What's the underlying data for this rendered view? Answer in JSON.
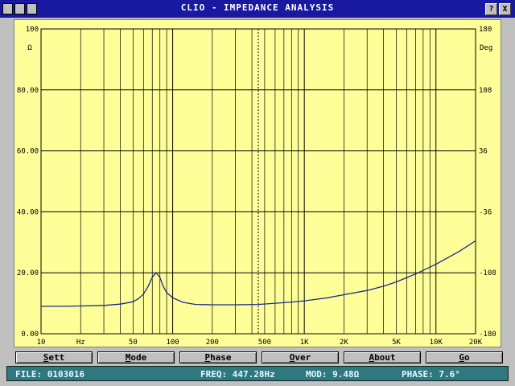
{
  "window": {
    "title": "CLIO - IMPEDANCE ANALYSIS",
    "help_label": "?",
    "close_label": "X"
  },
  "graph": {
    "left_unit": "Ω",
    "right_unit": "Deg",
    "left_ticks": [
      "100",
      "80.00",
      "60.00",
      "40.00",
      "20.00",
      "0.00"
    ],
    "right_ticks": [
      "180",
      "108",
      "36",
      "-36",
      "-108",
      "-180"
    ],
    "x_ticks": [
      "10",
      "Hz",
      "50",
      "100",
      "200",
      "500",
      "1K",
      "2K",
      "5K",
      "10K",
      "20K"
    ],
    "background_color": "#ffff99",
    "trace_color": "#1a2a8a"
  },
  "chart_data": {
    "type": "line",
    "title": "CLIO - IMPEDANCE ANALYSIS",
    "xscale": "log",
    "xlim": [
      10,
      20000
    ],
    "ylim": [
      0,
      100
    ],
    "y2lim": [
      -180,
      180
    ],
    "ylabel": "Ω",
    "y2label": "Deg",
    "xlabel": "Hz",
    "grid": true,
    "cursor_hz": 447.28,
    "series": [
      {
        "x": [
          10,
          15,
          20,
          30,
          40,
          50,
          55,
          60,
          65,
          70,
          75,
          80,
          85,
          90,
          100,
          120,
          150,
          200,
          300,
          447,
          600,
          800,
          1000,
          1500,
          2000,
          3000,
          4000,
          5000,
          7000,
          10000,
          15000,
          20000
        ],
        "y": [
          9.0,
          9.0,
          9.1,
          9.3,
          9.7,
          10.5,
          11.5,
          13.0,
          15.5,
          18.5,
          20.0,
          18.5,
          15.5,
          13.5,
          11.8,
          10.3,
          9.6,
          9.5,
          9.5,
          9.6,
          10.0,
          10.4,
          10.8,
          11.8,
          12.8,
          14.2,
          15.6,
          17.0,
          19.6,
          22.8,
          27.0,
          30.5
        ]
      }
    ]
  },
  "buttons": [
    {
      "ul": "S",
      "rest": "ett"
    },
    {
      "ul": "M",
      "rest": "ode"
    },
    {
      "ul": "P",
      "rest": "hase"
    },
    {
      "ul": "O",
      "rest": "ver"
    },
    {
      "ul": "A",
      "rest": "bout"
    },
    {
      "ul": "G",
      "rest": "o"
    }
  ],
  "status": {
    "file": "FILE: 0103016",
    "freq": "FREQ: 447.28Hz",
    "mod": "MOD: 9.48Ω",
    "phase": "PHASE: 7.6°"
  }
}
